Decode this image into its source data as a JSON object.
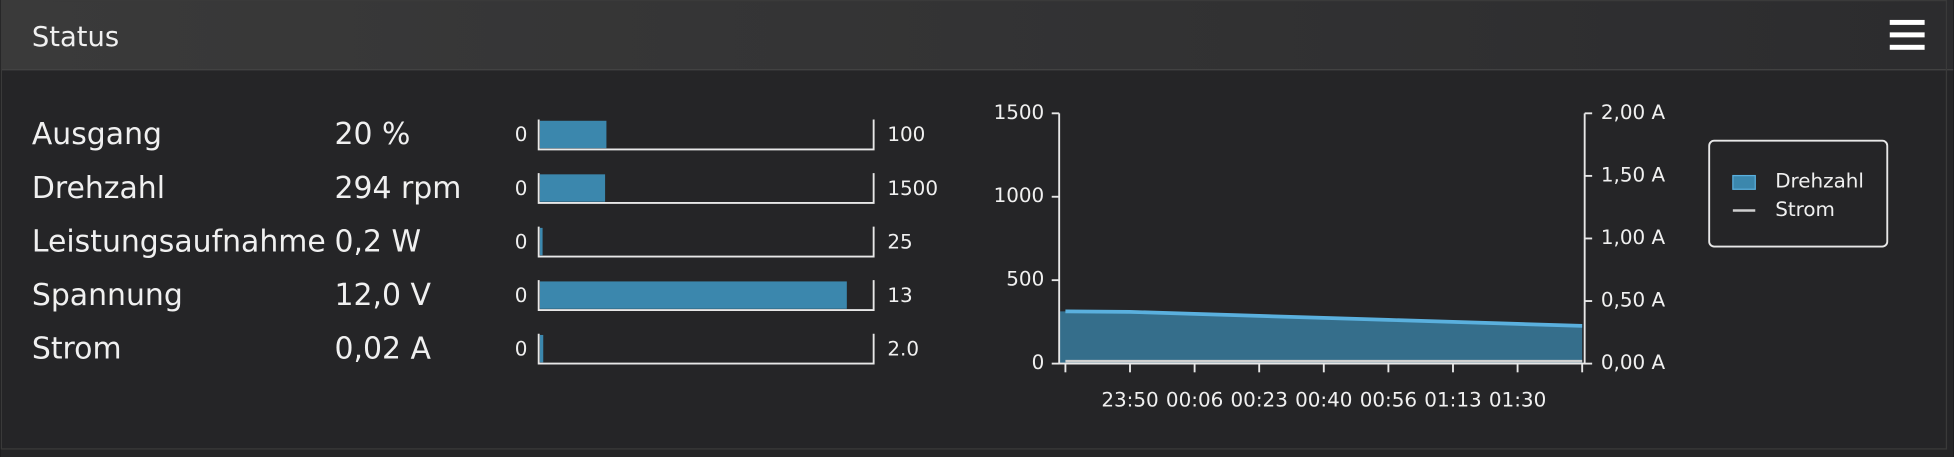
{
  "header": {
    "title": "Status"
  },
  "rows": [
    {
      "label": "Ausgang",
      "value_label": "20 %",
      "value": 20,
      "min": 0,
      "max": 100
    },
    {
      "label": "Drehzahl",
      "value_label": "294 rpm",
      "value": 294,
      "min": 0,
      "max": 1500
    },
    {
      "label": "Leistungsaufnahme",
      "value_label": "0,2 W",
      "value": 0.2,
      "min": 0,
      "max": 25
    },
    {
      "label": "Spannung",
      "value_label": "12,0 V",
      "value": 12,
      "min": 0,
      "max": 13
    },
    {
      "label": "Strom",
      "value_label": "0,02 A",
      "value": 0.02,
      "min": 0,
      "max": {
        "value": 2,
        "label": "2.0"
      }
    }
  ],
  "chart_data": {
    "type": "area",
    "categories": [
      null,
      "23:50",
      "00:06",
      "00:23",
      "00:40",
      "00:56",
      "01:13",
      "01:30",
      null
    ],
    "series": [
      {
        "name": "Drehzahl",
        "color": "#3b87ad",
        "values": [
          313,
          310,
          298,
          286,
          274,
          262,
          250,
          238,
          226
        ]
      },
      {
        "name": "Strom",
        "color": "#cfcfcf",
        "axis": "y2",
        "values": [
          0.02,
          0.02,
          0.02,
          0.02,
          0.02,
          0.02,
          0.02,
          0.02,
          0.02
        ]
      }
    ],
    "ylim": [
      0,
      1500
    ],
    "yticks": [
      0,
      500,
      1000,
      1500
    ],
    "y2lim": [
      0,
      2
    ],
    "y2ticks": [
      {
        "value": 0,
        "label": "0,00 A"
      },
      {
        "value": 0.5,
        "label": "0,50 A"
      },
      {
        "value": 1,
        "label": "1,00 A"
      },
      {
        "value": 1.5,
        "label": "1,50 A"
      },
      {
        "value": 2,
        "label": "2,00 A"
      }
    ],
    "legend": "right"
  }
}
